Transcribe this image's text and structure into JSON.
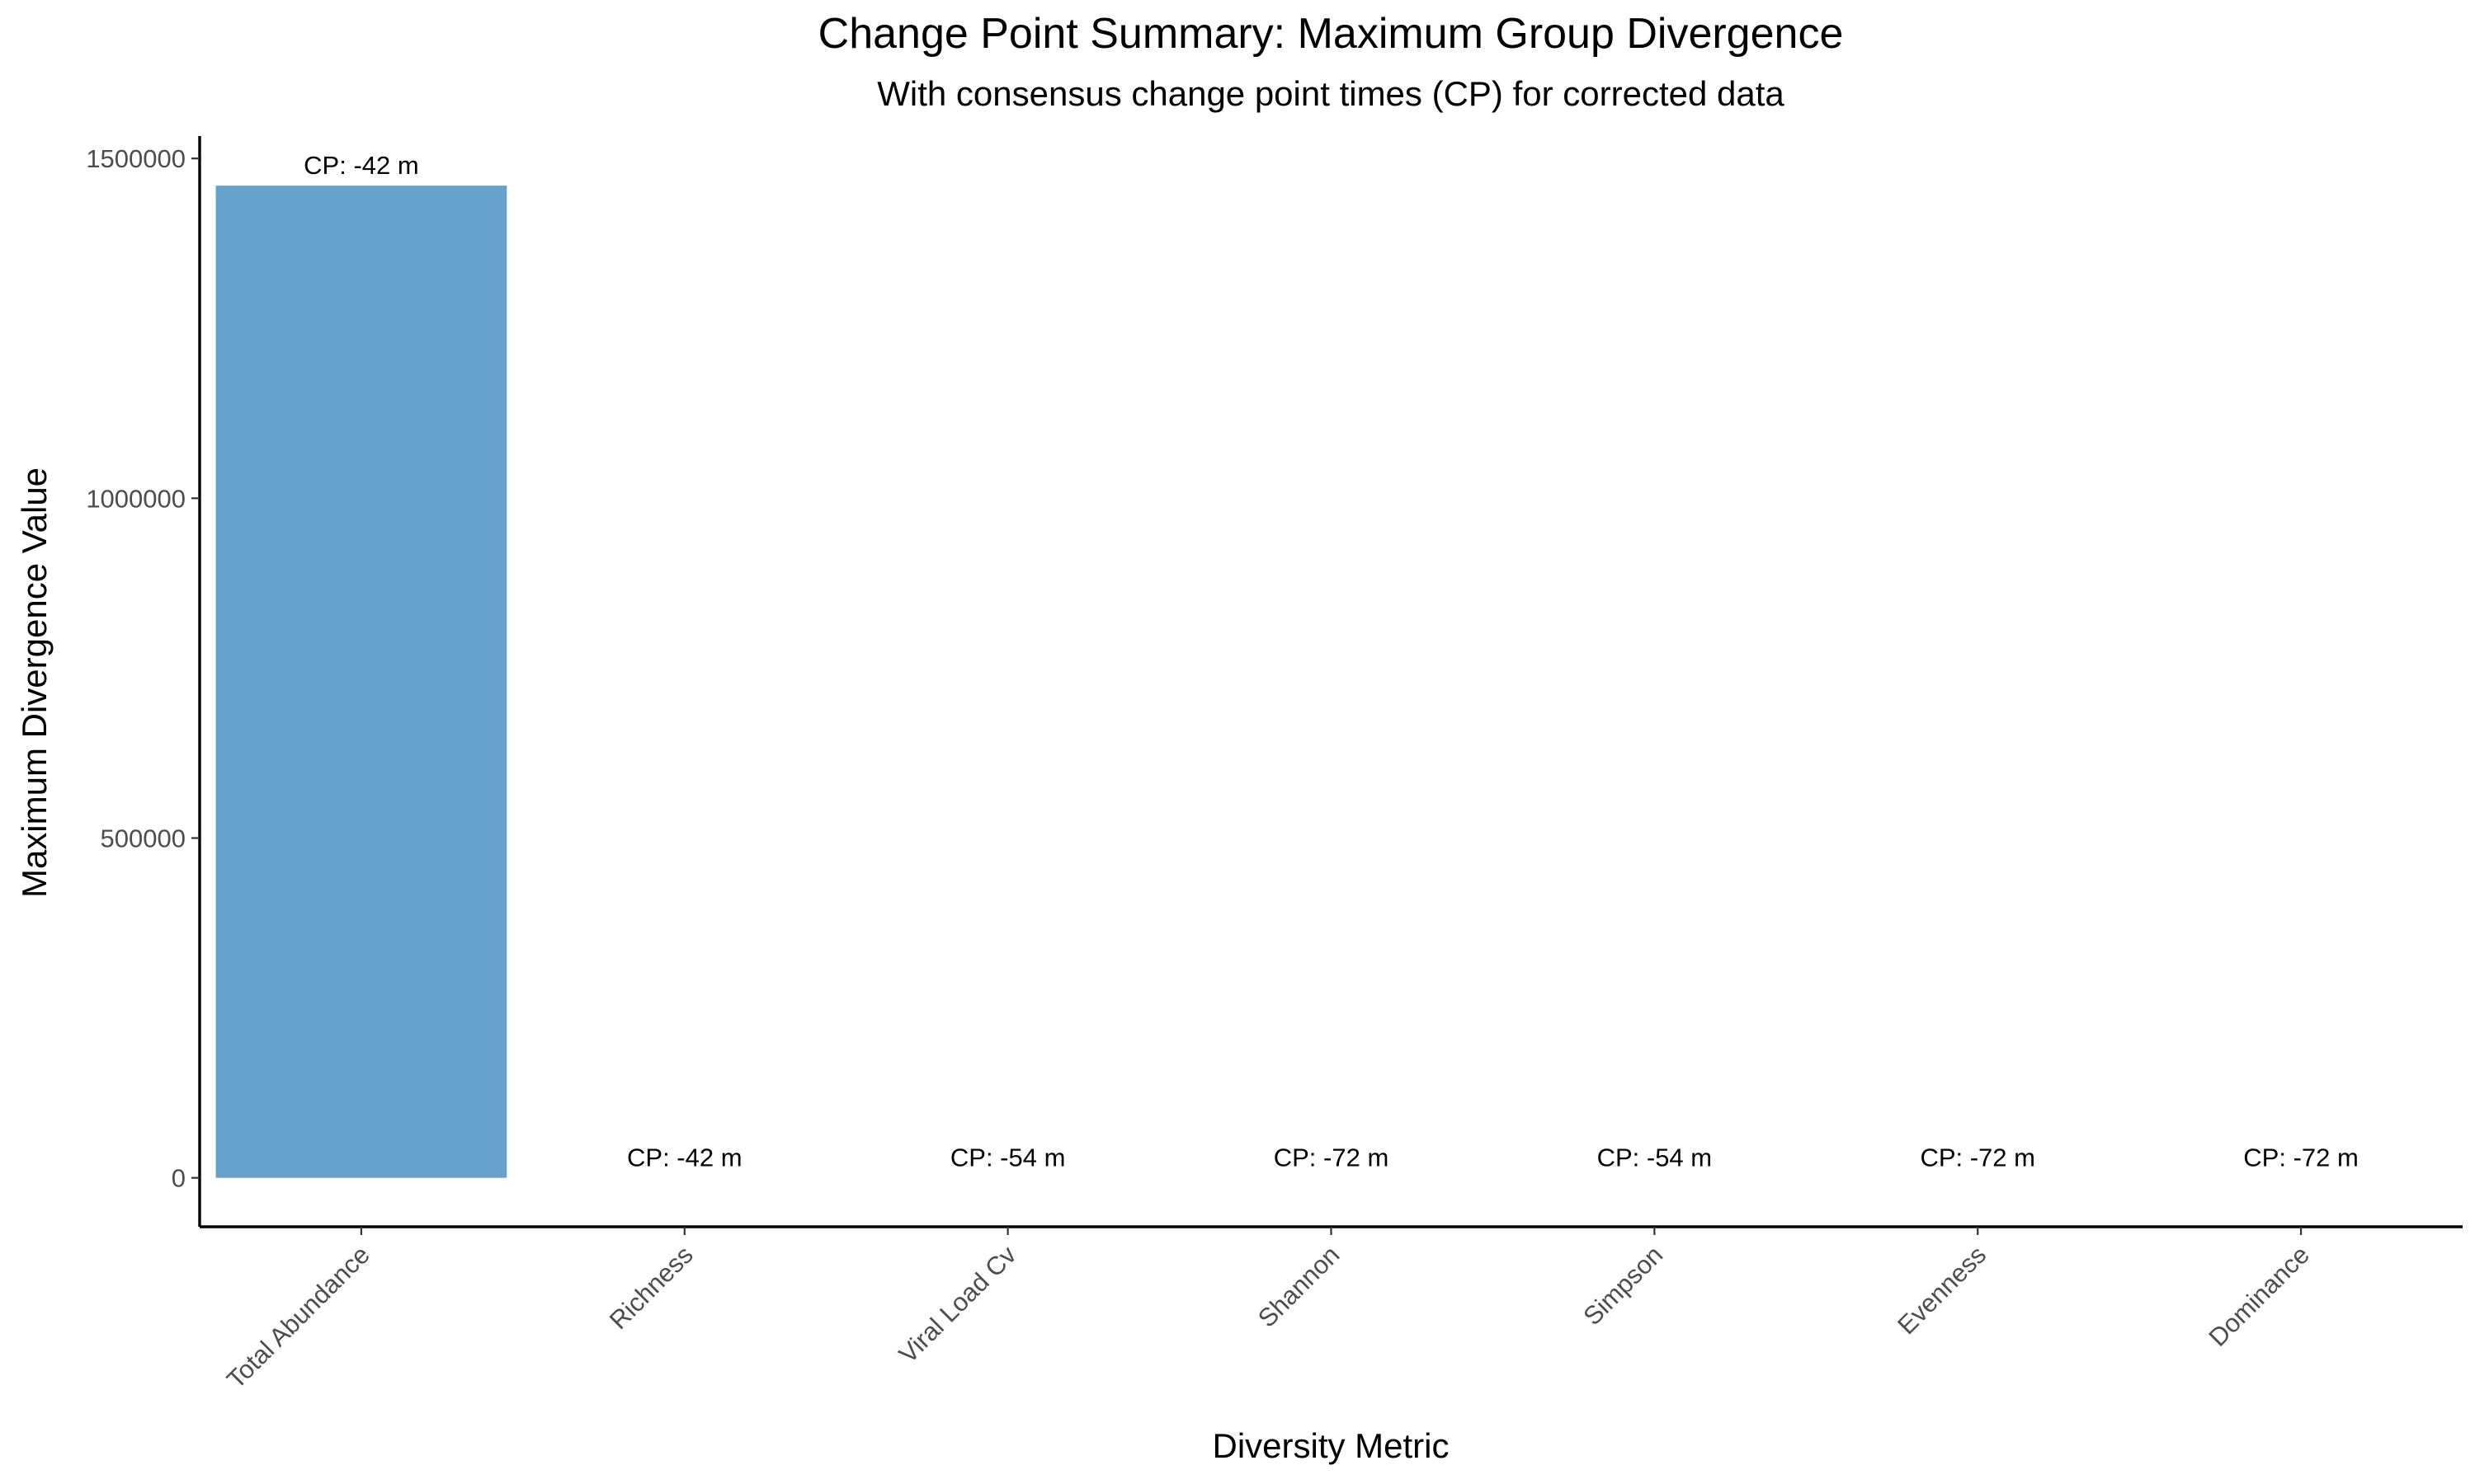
{
  "chart_data": {
    "type": "bar",
    "title": "Change Point Summary: Maximum Group Divergence",
    "subtitle": "With consensus change point times (CP) for corrected data",
    "xlabel": "Diversity Metric",
    "ylabel": "Maximum Divergence Value",
    "categories": [
      "Total Abundance",
      "Richness",
      "Viral Load Cv",
      "Shannon",
      "Simpson",
      "Evenness",
      "Dominance"
    ],
    "values": [
      1460000,
      0,
      0,
      0,
      0,
      0,
      0
    ],
    "bar_labels": [
      "CP: -42 m",
      "CP: -42 m",
      "CP: -54 m",
      "CP: -72 m",
      "CP: -54 m",
      "CP: -72 m",
      "CP: -72 m"
    ],
    "yticks": [
      0,
      500000,
      1000000,
      1500000
    ],
    "ytick_labels": [
      "0",
      "500000",
      "1000000",
      "1500000"
    ],
    "ylim": [
      -72000,
      1533000
    ],
    "bar_color": "#66a1cc",
    "grid": false,
    "legend": "none"
  }
}
